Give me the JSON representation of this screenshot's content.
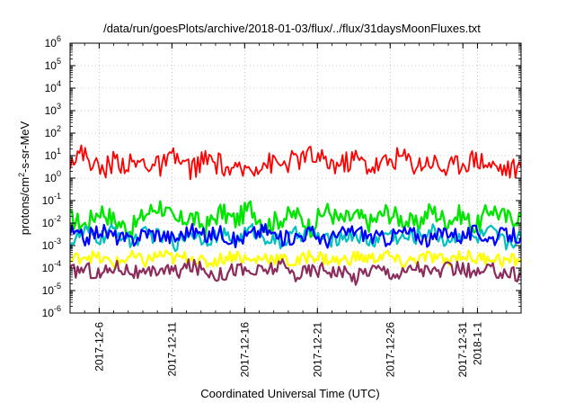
{
  "chart_data": {
    "type": "line",
    "title": "/data/run/goesPlots/archive/2018-01-03/flux/../flux/31daysMoonFluxes.txt",
    "xlabel": "Coordinated Universal Time (UTC)",
    "ylabel": "protons/cm²-s-sr-MeV",
    "ylabel_parts": {
      "pre": "protons/cm",
      "sup": "2",
      "post": "-s-sr-MeV"
    },
    "y_scale": "log",
    "ylim_exponent": [
      -6,
      6
    ],
    "y_ticks": [
      {
        "base": "10",
        "exp": "6"
      },
      {
        "base": "10",
        "exp": "5"
      },
      {
        "base": "10",
        "exp": "4"
      },
      {
        "base": "10",
        "exp": "3"
      },
      {
        "base": "10",
        "exp": "2"
      },
      {
        "base": "10",
        "exp": "1"
      },
      {
        "base": "10",
        "exp": "0"
      },
      {
        "base": "10",
        "exp": "-1"
      },
      {
        "base": "10",
        "exp": "-2"
      },
      {
        "base": "10",
        "exp": "-3"
      },
      {
        "base": "10",
        "exp": "-4"
      },
      {
        "base": "10",
        "exp": "-5"
      },
      {
        "base": "10",
        "exp": "-6"
      }
    ],
    "xlim_days": [
      0,
      31
    ],
    "x_ticks": [
      {
        "label": "2017-12-6",
        "day": 2
      },
      {
        "label": "2017-12-11",
        "day": 7
      },
      {
        "label": "2017-12-16",
        "day": 12
      },
      {
        "label": "2017-12-21",
        "day": 17
      },
      {
        "label": "2017-12-26",
        "day": 22
      },
      {
        "label": "2017-12-31",
        "day": 27
      },
      {
        "label": "2018-1-1",
        "day": 28
      }
    ],
    "grid": true,
    "series": [
      {
        "color": "#00e600",
        "center_log": -1.75,
        "amplitude": 0.45,
        "width": 2.4,
        "values_log": [
          -1.8,
          -2.1,
          -1.4,
          -1.9,
          -2.3,
          -1.6,
          -1.2,
          -2.0,
          -1.7,
          -2.2,
          -1.5,
          -1.9,
          -1.3,
          -2.1,
          -1.8,
          -1.6,
          -2.2,
          -1.4,
          -1.9,
          -1.7,
          -2.0,
          -1.5,
          -1.8,
          -2.1,
          -1.4,
          -1.9,
          -1.6,
          -2.2,
          -1.3,
          -1.8,
          -1.7
        ]
      },
      {
        "color": "#00c0c0",
        "center_log": -2.6,
        "amplitude": 0.35,
        "width": 2.2,
        "values_log": [
          -2.9,
          -2.4,
          -2.7,
          -2.3,
          -2.8,
          -2.5,
          -2.6,
          -2.9,
          -2.4,
          -2.7,
          -2.5,
          -2.8,
          -2.3,
          -2.6,
          -2.9,
          -2.5,
          -2.4,
          -2.8,
          -2.6,
          -2.5,
          -2.9,
          -2.4,
          -2.7,
          -2.6,
          -2.3,
          -2.8,
          -2.5,
          -2.7,
          -2.4,
          -2.9,
          -2.6
        ]
      },
      {
        "color": "#0000ff",
        "center_log": -2.5,
        "amplitude": 0.35,
        "width": 2.2,
        "values_log": [
          -2.4,
          -2.7,
          -2.3,
          -2.6,
          -2.8,
          -2.4,
          -2.5,
          -2.7,
          -2.3,
          -2.6,
          -2.4,
          -2.8,
          -2.5,
          -2.3,
          -2.7,
          -2.6,
          -2.4,
          -2.8,
          -2.5,
          -2.3,
          -2.6,
          -2.7,
          -2.4,
          -2.5,
          -2.8,
          -2.3,
          -2.6,
          -2.4,
          -2.7,
          -2.5,
          -2.6
        ]
      },
      {
        "color": "#ffff00",
        "center_log": -3.6,
        "amplitude": 0.3,
        "width": 2.4,
        "values_log": [
          -3.7,
          -3.4,
          -3.6,
          -3.8,
          -3.5,
          -3.7,
          -3.4,
          -3.6,
          -3.5,
          -3.8,
          -3.6,
          -3.4,
          -3.7,
          -3.5,
          -3.6,
          -3.8,
          -3.4,
          -3.6,
          -3.7,
          -3.5,
          -3.6,
          -3.4,
          -3.8,
          -3.6,
          -3.5,
          -3.7,
          -3.4,
          -3.6,
          -3.5,
          -3.7,
          -3.6
        ]
      },
      {
        "color": "#8b2c5c",
        "center_log": -4.1,
        "amplitude": 0.35,
        "width": 2.2,
        "values_log": [
          -4.2,
          -4.0,
          -4.3,
          -3.9,
          -4.1,
          -4.4,
          -4.0,
          -4.2,
          -3.9,
          -4.1,
          -4.3,
          -4.0,
          -4.2,
          -4.1,
          -3.9,
          -4.3,
          -4.1,
          -4.0,
          -4.2,
          -4.4,
          -4.0,
          -4.1,
          -4.3,
          -3.9,
          -4.2,
          -4.1,
          -4.0,
          -4.3,
          -4.1,
          -4.2,
          -4.3
        ]
      },
      {
        "color": "#ff0000",
        "center_log": 0.6,
        "amplitude": 0.5,
        "width": 1.8,
        "values_log": [
          0.9,
          1.1,
          0.3,
          0.8,
          0.6,
          0.7,
          0.5,
          0.9,
          0.4,
          0.8,
          0.6,
          0.2,
          0.5,
          0.7,
          0.6,
          0.8,
          1.0,
          0.7,
          0.6,
          0.9,
          0.5,
          0.7,
          1.0,
          0.6,
          0.8,
          0.4,
          0.7,
          0.9,
          0.6,
          0.4,
          0.5
        ]
      }
    ]
  }
}
